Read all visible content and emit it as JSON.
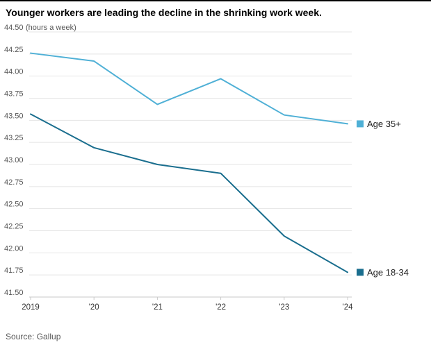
{
  "title": "Younger workers are leading the decline in the shrinking work week.",
  "source": "Source: Gallup",
  "chart_data": {
    "type": "line",
    "title": "Younger workers are leading the decline in the shrinking work week.",
    "unit_note": "(hours a week)",
    "x_labels": [
      "2019",
      "'20",
      "'21",
      "'22",
      "'23",
      "'24"
    ],
    "ylim": [
      41.5,
      44.5
    ],
    "ytick_step": 0.25,
    "grid": true,
    "legend_position": "right-of-line-ends",
    "colors": {
      "grid": "#e4e4e4",
      "axis": "#c9c9c9",
      "tick_text": "#555555",
      "legend_text": "#222222"
    },
    "series": [
      {
        "name": "Age 35+",
        "color": "#4fb0d6",
        "values": [
          44.26,
          44.17,
          43.68,
          43.97,
          43.56,
          43.46
        ]
      },
      {
        "name": "Age 18-34",
        "color": "#1a6e8e",
        "values": [
          43.57,
          43.19,
          43.0,
          42.9,
          42.19,
          41.78
        ]
      }
    ]
  }
}
